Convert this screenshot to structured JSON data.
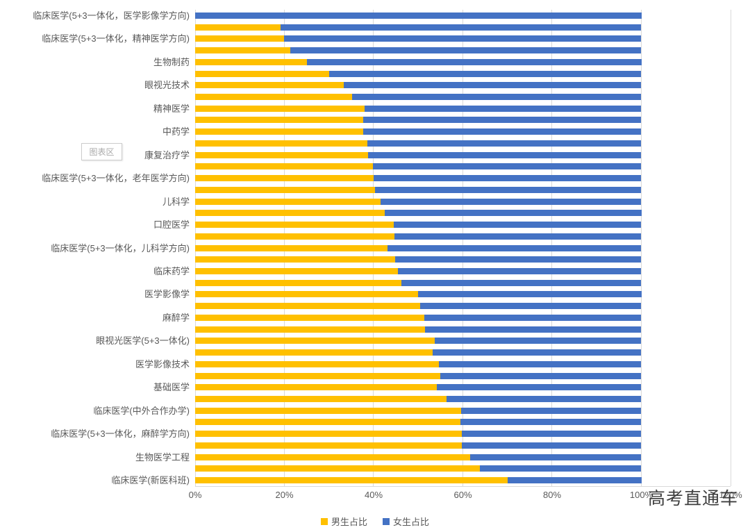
{
  "chart_data": {
    "type": "bar",
    "variant": "horizontal-100%-stacked",
    "title": "",
    "xlabel": "",
    "ylabel": "",
    "grid": "vertical-on",
    "legend_position": "bottom-center",
    "x_axis": {
      "max": 120,
      "tick_values": [
        0,
        20,
        40,
        60,
        80,
        100,
        120
      ],
      "tick_labels": [
        "0%",
        "20%",
        "40%",
        "60%",
        "80%",
        "100%",
        "120%"
      ]
    },
    "series": [
      {
        "name": "男生占比",
        "color": "#FFC000"
      },
      {
        "name": "女生占比",
        "color": "#4472C4"
      }
    ],
    "note": "41 stacked rows; axis shows a category label only on every other row (Excel label interval 2); values are percent male / percent female summing to 100",
    "rows": [
      {
        "label": "临床医学(5+3一体化，医学影像学方向)",
        "male": 0.0,
        "female": 100.0
      },
      {
        "label": "",
        "male": 19.1,
        "female": 80.9
      },
      {
        "label": "临床医学(5+3一体化，精神医学方向)",
        "male": 20.0,
        "female": 80.0
      },
      {
        "label": "",
        "male": 21.4,
        "female": 78.6
      },
      {
        "label": "生物制药",
        "male": 25.0,
        "female": 75.0
      },
      {
        "label": "",
        "male": 30.1,
        "female": 69.9
      },
      {
        "label": "眼视光技术",
        "male": 33.3,
        "female": 66.7
      },
      {
        "label": "",
        "male": 35.2,
        "female": 64.8
      },
      {
        "label": "精神医学",
        "male": 38.0,
        "female": 62.0
      },
      {
        "label": "",
        "male": 37.7,
        "female": 62.3
      },
      {
        "label": "中药学",
        "male": 37.7,
        "female": 62.3
      },
      {
        "label": "",
        "male": 38.6,
        "female": 61.4
      },
      {
        "label": "康复治疗学",
        "male": 38.8,
        "female": 61.2
      },
      {
        "label": "",
        "male": 39.9,
        "female": 60.1
      },
      {
        "label": "临床医学(5+3一体化，老年医学方向)",
        "male": 40.0,
        "female": 60.0
      },
      {
        "label": "",
        "male": 40.3,
        "female": 59.7
      },
      {
        "label": "儿科学",
        "male": 41.5,
        "female": 58.5
      },
      {
        "label": "",
        "male": 42.5,
        "female": 57.5
      },
      {
        "label": "口腔医学",
        "male": 44.5,
        "female": 55.5
      },
      {
        "label": "",
        "male": 44.7,
        "female": 55.3
      },
      {
        "label": "临床医学(5+3一体化，儿科学方向)",
        "male": 43.1,
        "female": 56.9
      },
      {
        "label": "",
        "male": 44.9,
        "female": 55.1
      },
      {
        "label": "临床药学",
        "male": 45.4,
        "female": 54.6
      },
      {
        "label": "",
        "male": 46.3,
        "female": 53.7
      },
      {
        "label": "医学影像学",
        "male": 50.0,
        "female": 50.0
      },
      {
        "label": "",
        "male": 50.5,
        "female": 49.5
      },
      {
        "label": "麻醉学",
        "male": 51.3,
        "female": 48.7
      },
      {
        "label": "",
        "male": 51.5,
        "female": 48.5
      },
      {
        "label": "眼视光医学(5+3一体化)",
        "male": 53.7,
        "female": 46.3
      },
      {
        "label": "",
        "male": 53.2,
        "female": 46.8
      },
      {
        "label": "医学影像技术",
        "male": 54.7,
        "female": 45.3
      },
      {
        "label": "",
        "male": 54.9,
        "female": 45.1
      },
      {
        "label": "基础医学",
        "male": 54.1,
        "female": 45.9
      },
      {
        "label": "",
        "male": 56.4,
        "female": 43.6
      },
      {
        "label": "临床医学(中外合作办学)",
        "male": 59.6,
        "female": 40.4
      },
      {
        "label": "",
        "male": 59.5,
        "female": 40.5
      },
      {
        "label": "临床医学(5+3一体化，麻醉学方向)",
        "male": 59.8,
        "female": 40.2
      },
      {
        "label": "",
        "male": 59.7,
        "female": 40.3
      },
      {
        "label": "生物医学工程",
        "male": 61.7,
        "female": 38.3
      },
      {
        "label": "",
        "male": 63.8,
        "female": 36.2
      },
      {
        "label": "临床医学(新医科班)",
        "male": 70.0,
        "female": 30.0
      }
    ]
  },
  "overlays": {
    "plot_area_tooltip": "图表区",
    "watermark": "高考直通车"
  },
  "colors": {
    "male_bar": "#FFC000",
    "female_bar": "#4472C4",
    "gridline": "#d9d9d9",
    "axis_text": "#595959",
    "watermark_text": "#3d3d3d"
  }
}
